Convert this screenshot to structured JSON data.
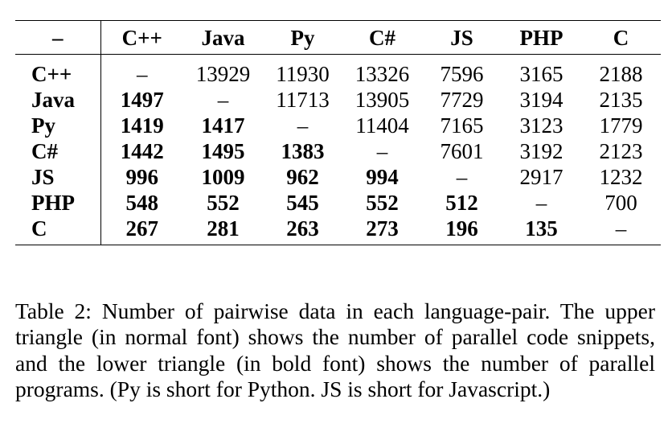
{
  "table": {
    "corner": "–",
    "columns": [
      "C++",
      "Java",
      "Py",
      "C#",
      "JS",
      "PHP",
      "C"
    ],
    "rows": [
      {
        "label": "C++",
        "cells": [
          "–",
          "13929",
          "11930",
          "13326",
          "7596",
          "3165",
          "2188"
        ]
      },
      {
        "label": "Java",
        "cells": [
          "1497",
          "–",
          "11713",
          "13905",
          "7729",
          "3194",
          "2135"
        ]
      },
      {
        "label": "Py",
        "cells": [
          "1419",
          "1417",
          "–",
          "11404",
          "7165",
          "3123",
          "1779"
        ]
      },
      {
        "label": "C#",
        "cells": [
          "1442",
          "1495",
          "1383",
          "–",
          "7601",
          "3192",
          "2123"
        ]
      },
      {
        "label": "JS",
        "cells": [
          "996",
          "1009",
          "962",
          "994",
          "–",
          "2917",
          "1232"
        ]
      },
      {
        "label": "PHP",
        "cells": [
          "548",
          "552",
          "545",
          "552",
          "512",
          "–",
          "700"
        ]
      },
      {
        "label": "C",
        "cells": [
          "267",
          "281",
          "263",
          "273",
          "196",
          "135",
          "–"
        ]
      }
    ]
  },
  "caption": "Table 2: Number of pairwise data in each language-pair. The upper triangle (in normal font) shows the number of parallel code snippets, and the lower triangle (in bold font) shows the number of parallel programs. (Py is short for Python. JS is short for Javascript.)"
}
